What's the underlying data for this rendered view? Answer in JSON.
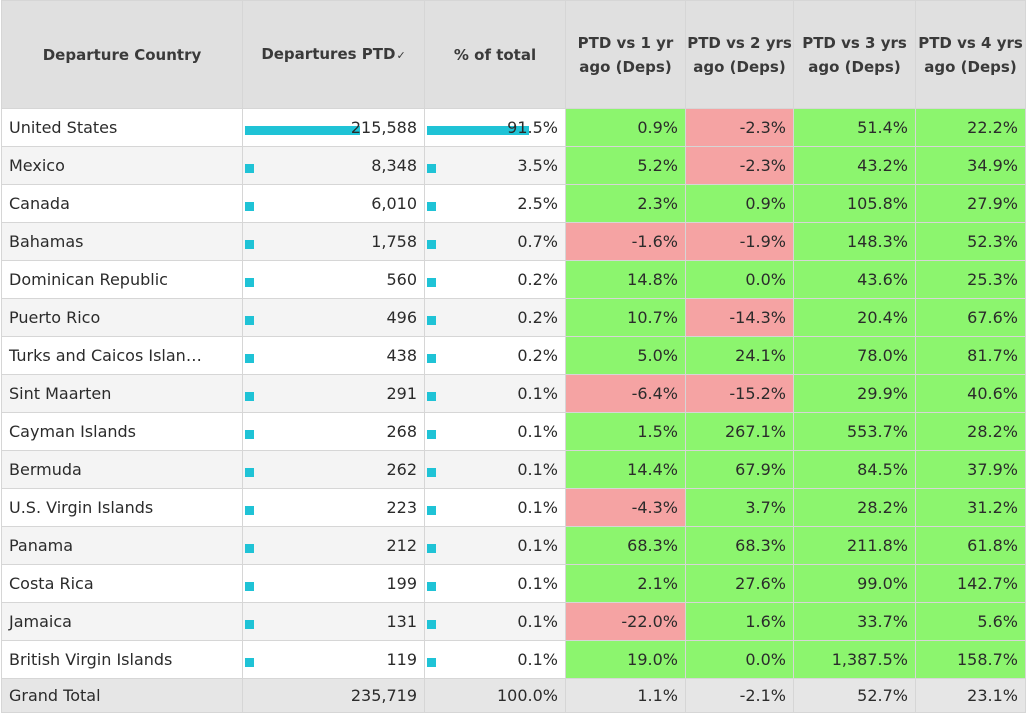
{
  "headers": {
    "country": "Departure Country",
    "departures": "Departures PTD",
    "share": "% of total",
    "vs1": "PTD vs 1 yr ago (Deps)",
    "vs2": "PTD vs 2 yrs ago (Deps)",
    "vs3": "PTD vs 3 yrs ago (Deps)",
    "vs4": "PTD vs 4 yrs ago (Deps)"
  },
  "sort_icon": "sort-descending-icon",
  "colors": {
    "positive": "#8cf56e",
    "negative": "#f5a3a3",
    "bar": "#1fc3d6"
  },
  "rows": [
    {
      "country": "United States",
      "departures": "215,588",
      "share": "91.5%",
      "share_frac": 0.915,
      "dep_frac": 0.9146,
      "vs1": "0.9%",
      "vs2": "-2.3%",
      "vs3": "51.4%",
      "vs4": "22.2%"
    },
    {
      "country": "Mexico",
      "departures": "8,348",
      "share": "3.5%",
      "share_frac": 0.035,
      "dep_frac": 0.0387,
      "vs1": "5.2%",
      "vs2": "-2.3%",
      "vs3": "43.2%",
      "vs4": "34.9%"
    },
    {
      "country": "Canada",
      "departures": "6,010",
      "share": "2.5%",
      "share_frac": 0.025,
      "dep_frac": 0.0279,
      "vs1": "2.3%",
      "vs2": "0.9%",
      "vs3": "105.8%",
      "vs4": "27.9%"
    },
    {
      "country": "Bahamas",
      "departures": "1,758",
      "share": "0.7%",
      "share_frac": 0.007,
      "dep_frac": 0.0082,
      "vs1": "-1.6%",
      "vs2": "-1.9%",
      "vs3": "148.3%",
      "vs4": "52.3%"
    },
    {
      "country": "Dominican Republic",
      "departures": "560",
      "share": "0.2%",
      "share_frac": 0.002,
      "dep_frac": 0.0026,
      "vs1": "14.8%",
      "vs2": "0.0%",
      "vs3": "43.6%",
      "vs4": "25.3%"
    },
    {
      "country": "Puerto Rico",
      "departures": "496",
      "share": "0.2%",
      "share_frac": 0.002,
      "dep_frac": 0.0023,
      "vs1": "10.7%",
      "vs2": "-14.3%",
      "vs3": "20.4%",
      "vs4": "67.6%"
    },
    {
      "country": "Turks and Caicos Islan…",
      "departures": "438",
      "share": "0.2%",
      "share_frac": 0.002,
      "dep_frac": 0.002,
      "vs1": "5.0%",
      "vs2": "24.1%",
      "vs3": "78.0%",
      "vs4": "81.7%"
    },
    {
      "country": "Sint Maarten",
      "departures": "291",
      "share": "0.1%",
      "share_frac": 0.001,
      "dep_frac": 0.0013,
      "vs1": "-6.4%",
      "vs2": "-15.2%",
      "vs3": "29.9%",
      "vs4": "40.6%"
    },
    {
      "country": "Cayman Islands",
      "departures": "268",
      "share": "0.1%",
      "share_frac": 0.001,
      "dep_frac": 0.0012,
      "vs1": "1.5%",
      "vs2": "267.1%",
      "vs3": "553.7%",
      "vs4": "28.2%"
    },
    {
      "country": "Bermuda",
      "departures": "262",
      "share": "0.1%",
      "share_frac": 0.001,
      "dep_frac": 0.0012,
      "vs1": "14.4%",
      "vs2": "67.9%",
      "vs3": "84.5%",
      "vs4": "37.9%"
    },
    {
      "country": "U.S. Virgin Islands",
      "departures": "223",
      "share": "0.1%",
      "share_frac": 0.001,
      "dep_frac": 0.001,
      "vs1": "-4.3%",
      "vs2": "3.7%",
      "vs3": "28.2%",
      "vs4": "31.2%"
    },
    {
      "country": "Panama",
      "departures": "212",
      "share": "0.1%",
      "share_frac": 0.001,
      "dep_frac": 0.001,
      "vs1": "68.3%",
      "vs2": "68.3%",
      "vs3": "211.8%",
      "vs4": "61.8%"
    },
    {
      "country": "Costa Rica",
      "departures": "199",
      "share": "0.1%",
      "share_frac": 0.001,
      "dep_frac": 0.0009,
      "vs1": "2.1%",
      "vs2": "27.6%",
      "vs3": "99.0%",
      "vs4": "142.7%"
    },
    {
      "country": "Jamaica",
      "departures": "131",
      "share": "0.1%",
      "share_frac": 0.001,
      "dep_frac": 0.0006,
      "vs1": "-22.0%",
      "vs2": "1.6%",
      "vs3": "33.7%",
      "vs4": "5.6%"
    },
    {
      "country": "British Virgin Islands",
      "departures": "119",
      "share": "0.1%",
      "share_frac": 0.001,
      "dep_frac": 0.0005,
      "vs1": "19.0%",
      "vs2": "0.0%",
      "vs3": "1,387.5%",
      "vs4": "158.7%"
    }
  ],
  "total": {
    "country": "Grand Total",
    "departures": "235,719",
    "share": "100.0%",
    "vs1": "1.1%",
    "vs2": "-2.1%",
    "vs3": "52.7%",
    "vs4": "23.1%"
  }
}
